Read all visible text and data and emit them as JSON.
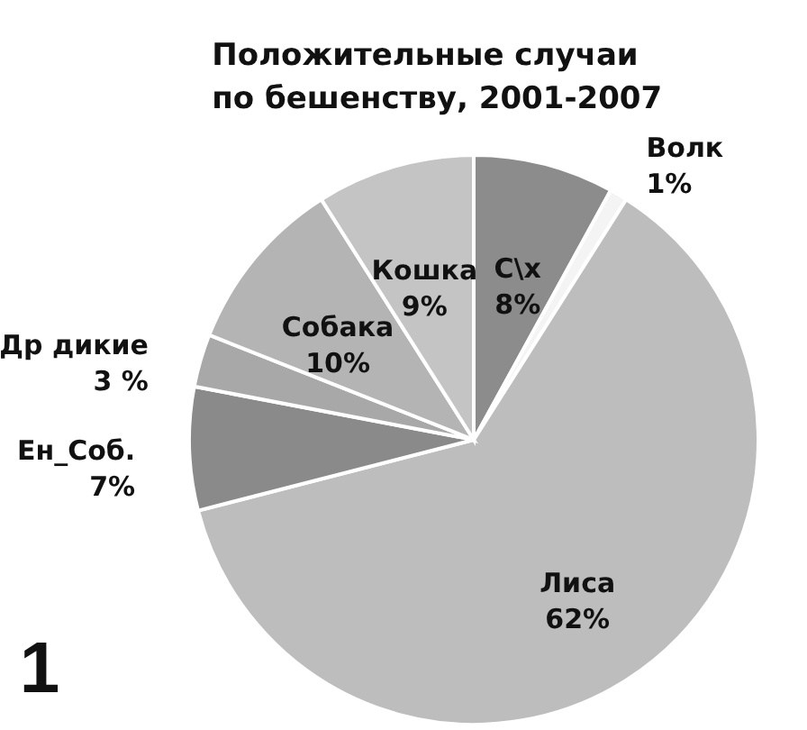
{
  "chart_data": {
    "type": "pie",
    "title": "Положительные случаи по бешенству, 2001-2007",
    "categories": [
      "С\\х",
      "Волк",
      "Лиса",
      "Ен_Соб.",
      "Др дикие",
      "Собака",
      "Кошка"
    ],
    "values": [
      8,
      1,
      62,
      7,
      3,
      10,
      9
    ],
    "value_labels": [
      "8%",
      "1%",
      "62%",
      "7%",
      "3 %",
      "10%",
      "9%"
    ],
    "colors": [
      "#8c8c8c",
      "#f4f4f4",
      "#bdbdbd",
      "#8a8a8a",
      "#a8a8a8",
      "#b4b4b4",
      "#c4c4c4"
    ],
    "annotations": [
      "1"
    ]
  }
}
